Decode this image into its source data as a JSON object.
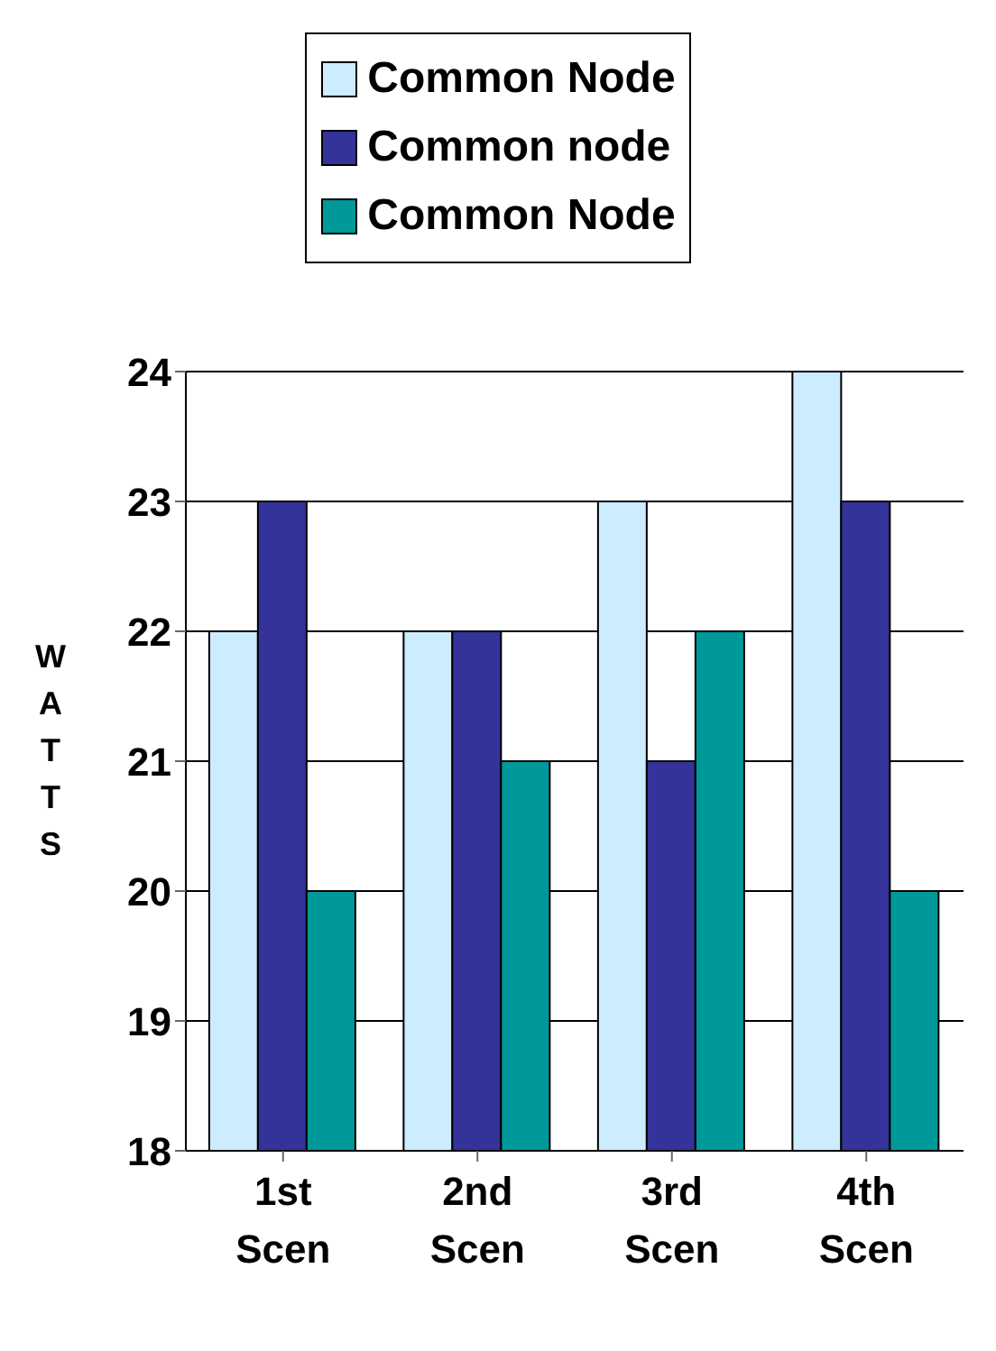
{
  "chart_data": {
    "type": "bar",
    "categories": [
      "1st Scen",
      "2nd Scen",
      "3rd Scen",
      "4th Scen"
    ],
    "series": [
      {
        "name": "Common Node",
        "color": "#ccecff",
        "values": [
          22,
          22,
          23,
          24
        ]
      },
      {
        "name": "Common node",
        "color": "#333399",
        "values": [
          23,
          22,
          21,
          23
        ]
      },
      {
        "name": "Common Node",
        "color": "#009999",
        "values": [
          20,
          21,
          22,
          20
        ]
      }
    ],
    "ylabel": "WATTS",
    "ylim": [
      18,
      24
    ],
    "yticks": [
      18,
      19,
      20,
      21,
      22,
      23,
      24
    ],
    "grid": "y",
    "legend": "top"
  }
}
